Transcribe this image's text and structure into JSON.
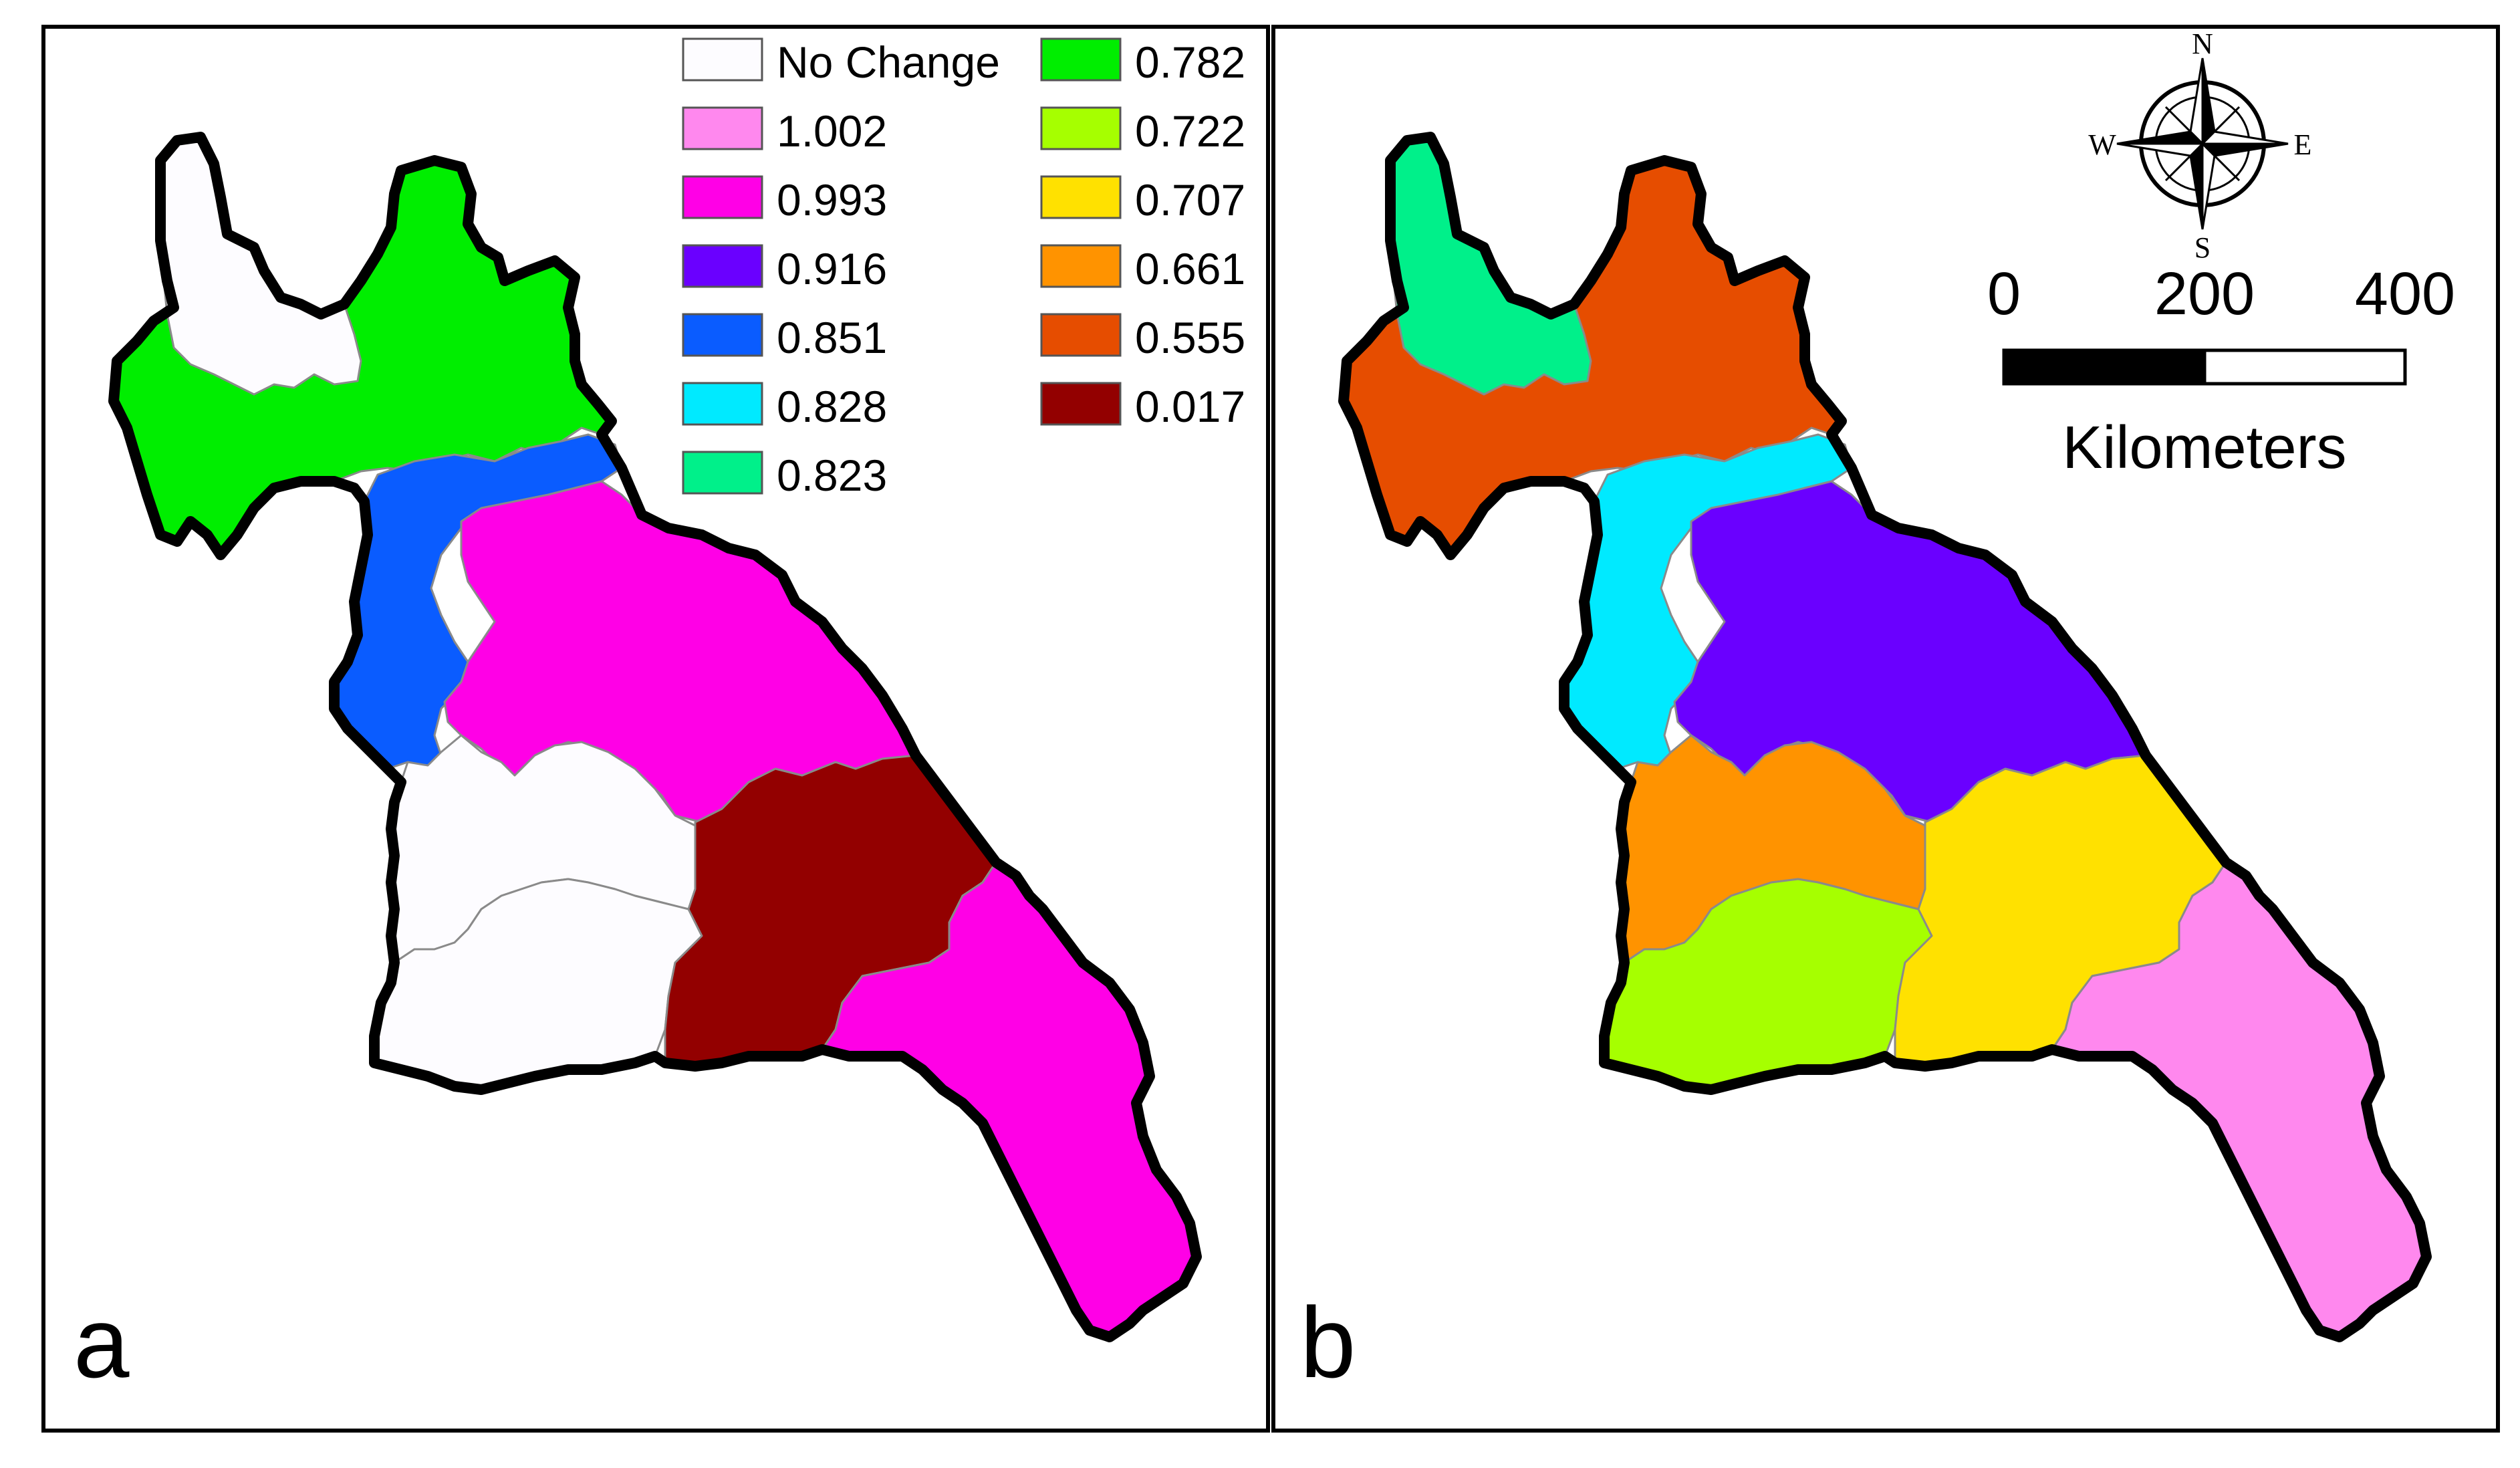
{
  "panels": {
    "a": {
      "label": "a"
    },
    "b": {
      "label": "b"
    }
  },
  "legend": {
    "items": [
      {
        "label": "No Change",
        "color": "#fdfcff"
      },
      {
        "label": "1.002",
        "color": "#ff88ee"
      },
      {
        "label": "0.993",
        "color": "#ff00e6"
      },
      {
        "label": "0.916",
        "color": "#6a00ff"
      },
      {
        "label": "0.851",
        "color": "#0a5cff"
      },
      {
        "label": "0.828",
        "color": "#00eaff"
      },
      {
        "label": "0.823",
        "color": "#00f08a"
      },
      {
        "label": "0.782",
        "color": "#00ee00"
      },
      {
        "label": "0.722",
        "color": "#a6ff00"
      },
      {
        "label": "0.707",
        "color": "#ffe100"
      },
      {
        "label": "0.661",
        "color": "#ff9300"
      },
      {
        "label": "0.555",
        "color": "#e64d00"
      },
      {
        "label": "0.017",
        "color": "#930000"
      }
    ]
  },
  "compass": {
    "n": "N",
    "s": "S",
    "e": "E",
    "w": "W"
  },
  "scale_bar": {
    "ticks": [
      "0",
      "200",
      "400"
    ],
    "unit": "Kilometers"
  },
  "colors": {
    "outline": "#000000",
    "internal_border": "#8a8a8a"
  }
}
